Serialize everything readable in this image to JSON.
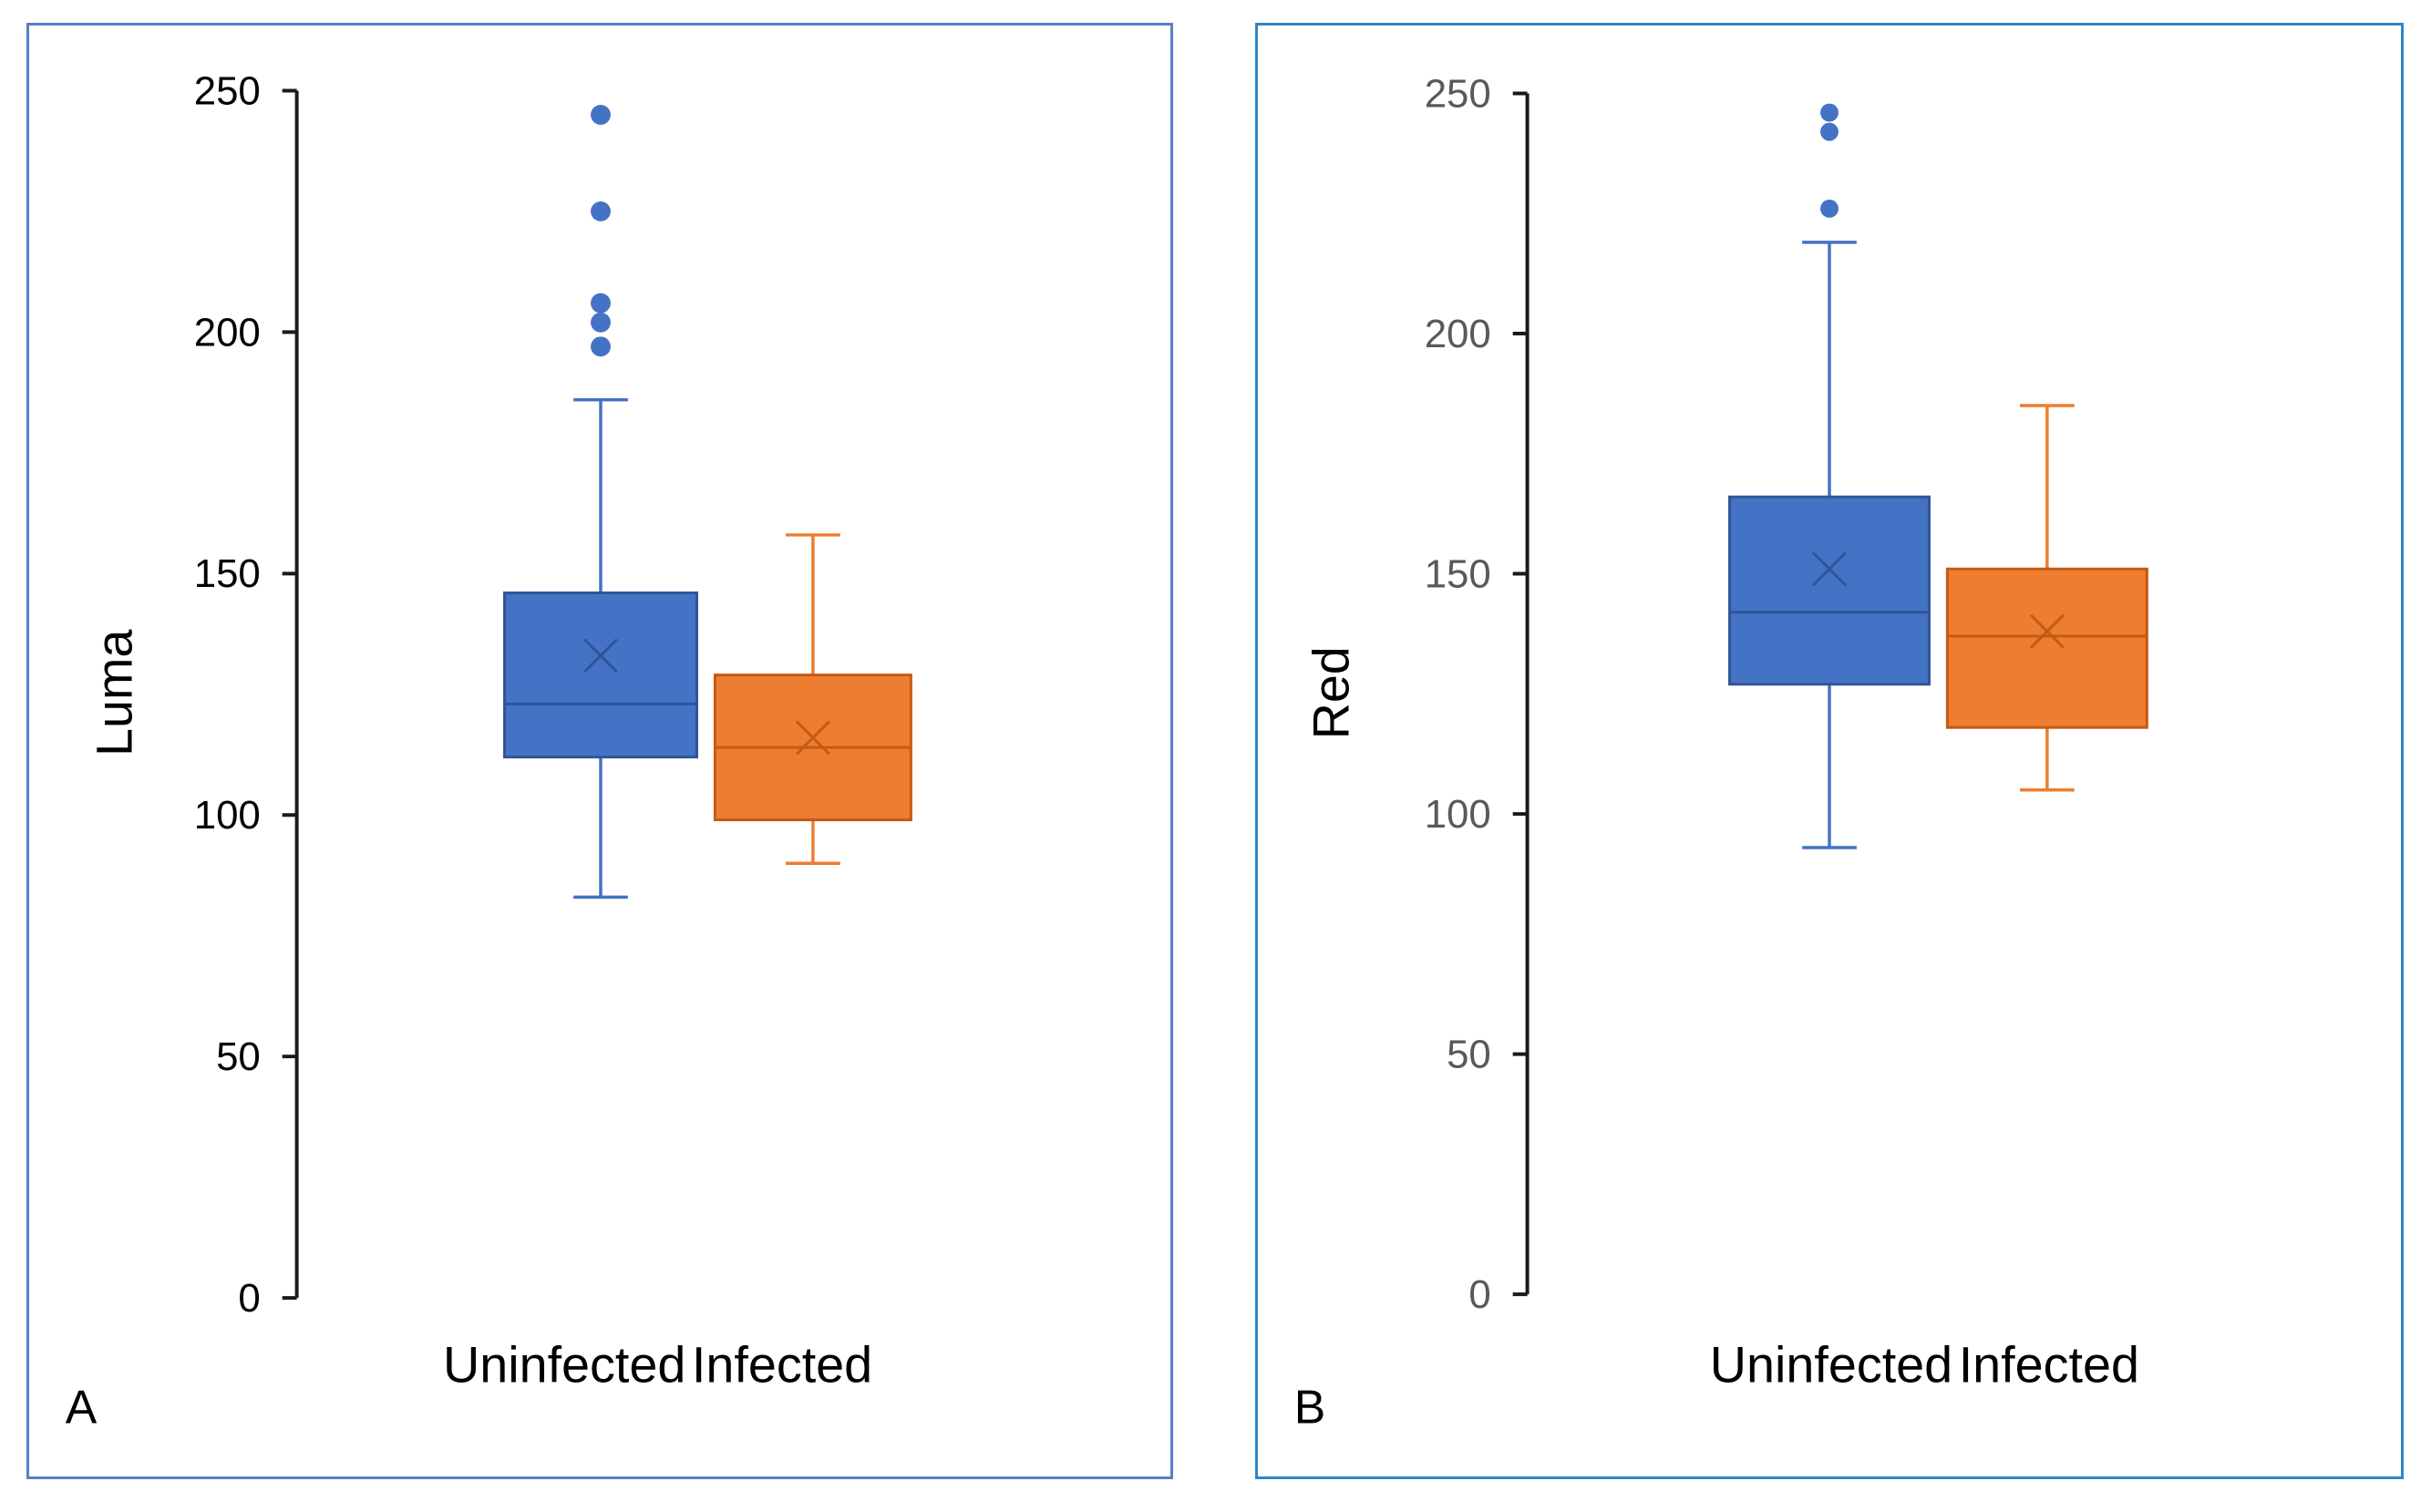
{
  "colors": {
    "uninfected": "#4472c4",
    "uninfected_stroke": "#2f5597",
    "infected": "#ed7d31",
    "infected_stroke": "#c55a11",
    "panel_a_border": "#5b7fc4",
    "panel_b_border": "#2e86c8"
  },
  "chart_data": [
    {
      "type": "boxplot",
      "panel_label": "A",
      "ylabel": "Luma",
      "xlabel": "",
      "ylim": [
        0,
        250
      ],
      "yticks": [
        0,
        50,
        100,
        150,
        200,
        250
      ],
      "tick_labels": [
        "0",
        "50",
        "100",
        "150",
        "200",
        "250"
      ],
      "categories": [
        "Uninfected",
        "Infected"
      ],
      "boxes": [
        {
          "name": "Uninfected",
          "whisker_low": 83,
          "q1": 112,
          "median": 123,
          "q3": 146,
          "whisker_high": 186,
          "mean": 133,
          "outliers": [
            197,
            202,
            206,
            225,
            245
          ]
        },
        {
          "name": "Infected",
          "whisker_low": 90,
          "q1": 99,
          "median": 114,
          "q3": 129,
          "whisker_high": 158,
          "mean": 116,
          "outliers": []
        }
      ]
    },
    {
      "type": "boxplot",
      "panel_label": "B",
      "ylabel": "Red",
      "xlabel": "",
      "ylim": [
        0,
        250
      ],
      "yticks": [
        0,
        50,
        100,
        150,
        200,
        250
      ],
      "tick_labels": [
        "0",
        "50",
        "100",
        "150",
        "200",
        "250"
      ],
      "categories": [
        "Uninfected",
        "Infected"
      ],
      "boxes": [
        {
          "name": "Uninfected",
          "whisker_low": 93,
          "q1": 127,
          "median": 142,
          "q3": 166,
          "whisker_high": 219,
          "mean": 151,
          "outliers": [
            226,
            242,
            246
          ]
        },
        {
          "name": "Infected",
          "whisker_low": 105,
          "q1": 118,
          "median": 137,
          "q3": 151,
          "whisker_high": 185,
          "mean": 138,
          "outliers": []
        }
      ]
    }
  ]
}
